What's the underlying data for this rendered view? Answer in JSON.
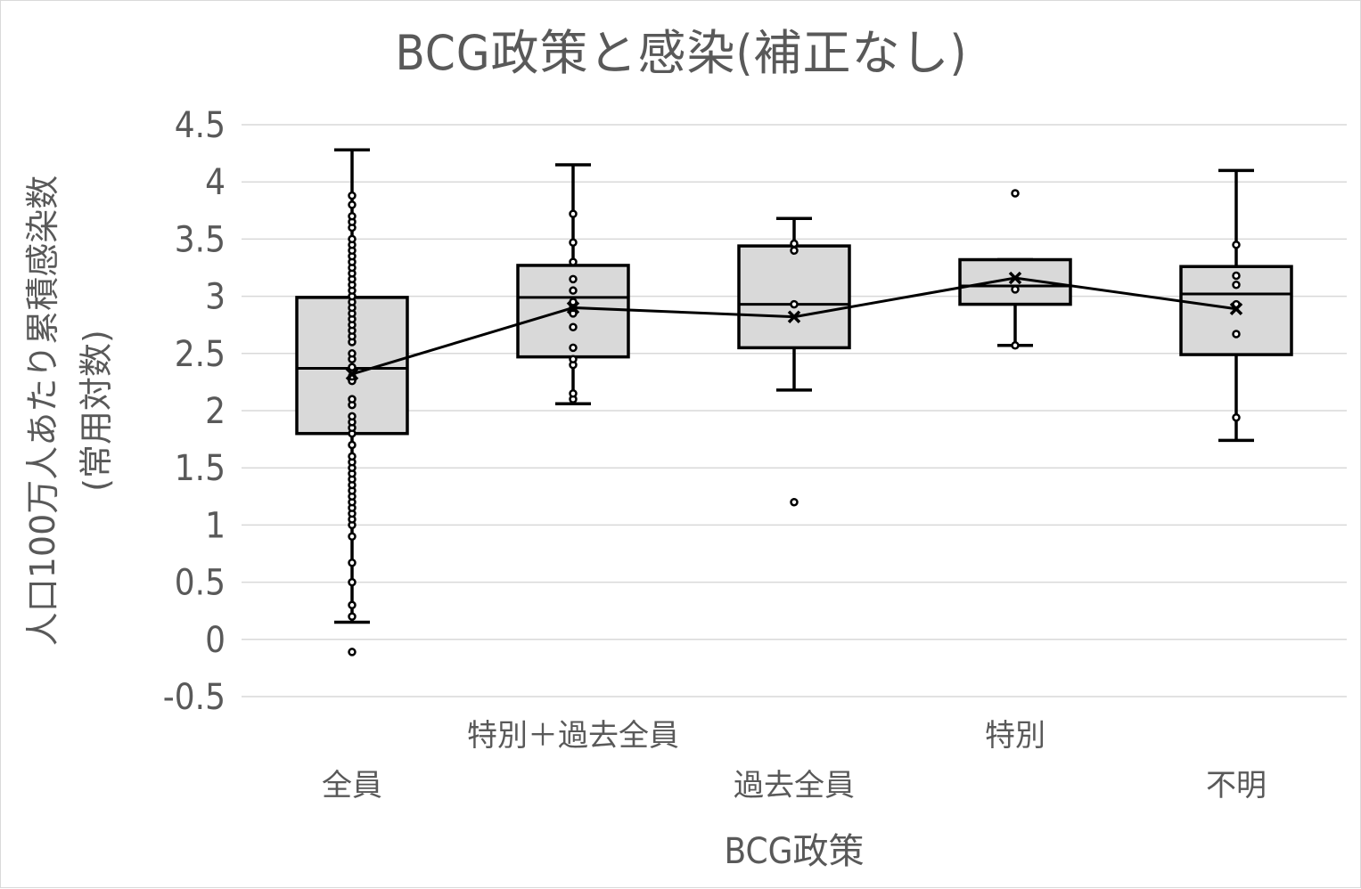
{
  "chart_data": {
    "type": "box",
    "title": "BCG政策と感染(補正なし)",
    "xlabel": "BCG政策",
    "ylabel": [
      "人口100万人あたり累積感染数",
      "(常用対数)"
    ],
    "ylim": [
      -0.5,
      4.5
    ],
    "yticks": [
      "4.5",
      "4",
      "3.5",
      "3",
      "2.5",
      "2",
      "1.5",
      "1",
      "0.5",
      "0",
      "-0.5"
    ],
    "ytick_values": [
      4.5,
      4,
      3.5,
      3,
      2.5,
      2,
      1.5,
      1,
      0.5,
      0,
      -0.5
    ],
    "grid": true,
    "categories": [
      "全員",
      "特別＋過去全員",
      "過去全員",
      "特別",
      "不明"
    ],
    "boxes": [
      {
        "category": "全員",
        "whisker_low": 0.15,
        "q1": 1.8,
        "median": 2.37,
        "q3": 2.99,
        "whisker_high": 4.28,
        "mean": 2.32,
        "points": [
          -0.11,
          0.2,
          0.3,
          0.5,
          0.67,
          0.9,
          1.0,
          1.05,
          1.1,
          1.15,
          1.2,
          1.25,
          1.3,
          1.35,
          1.4,
          1.45,
          1.5,
          1.55,
          1.6,
          1.7,
          1.8,
          1.85,
          1.9,
          1.95,
          2.05,
          2.1,
          2.26,
          2.3,
          2.38,
          2.45,
          2.5,
          2.6,
          2.65,
          2.7,
          2.75,
          2.8,
          2.85,
          2.9,
          2.95,
          3.0,
          3.05,
          3.1,
          3.15,
          3.2,
          3.25,
          3.3,
          3.35,
          3.4,
          3.45,
          3.5,
          3.6,
          3.65,
          3.7,
          3.8,
          3.88
        ]
      },
      {
        "category": "特別＋過去全員",
        "whisker_low": 2.06,
        "q1": 2.47,
        "median": 2.99,
        "q3": 3.27,
        "whisker_high": 4.15,
        "mean": 2.9,
        "points": [
          2.1,
          2.15,
          2.4,
          2.45,
          2.55,
          2.73,
          2.85,
          2.9,
          2.95,
          3.05,
          3.15,
          3.3,
          3.47,
          3.72
        ]
      },
      {
        "category": "過去全員",
        "whisker_low": 2.18,
        "q1": 2.55,
        "median": 2.93,
        "q3": 3.44,
        "whisker_high": 3.68,
        "mean": 2.82,
        "points": [
          1.2,
          2.93,
          3.4,
          3.46
        ]
      },
      {
        "category": "特別",
        "whisker_low": 2.57,
        "q1": 2.93,
        "median": 3.09,
        "q3": 3.32,
        "whisker_high": 3.32,
        "mean": 3.16,
        "points": [
          2.57,
          3.06,
          3.9
        ]
      },
      {
        "category": "不明",
        "whisker_low": 1.74,
        "q1": 2.49,
        "median": 3.02,
        "q3": 3.26,
        "whisker_high": 4.1,
        "mean": 2.89,
        "points": [
          1.94,
          2.67,
          2.93,
          3.1,
          3.18,
          3.45
        ]
      }
    ],
    "mean_line": true,
    "colors": {
      "box_fill": "#d9d9d9",
      "stroke": "#000000",
      "grid": "#d9d9d9",
      "text": "#595959"
    }
  }
}
